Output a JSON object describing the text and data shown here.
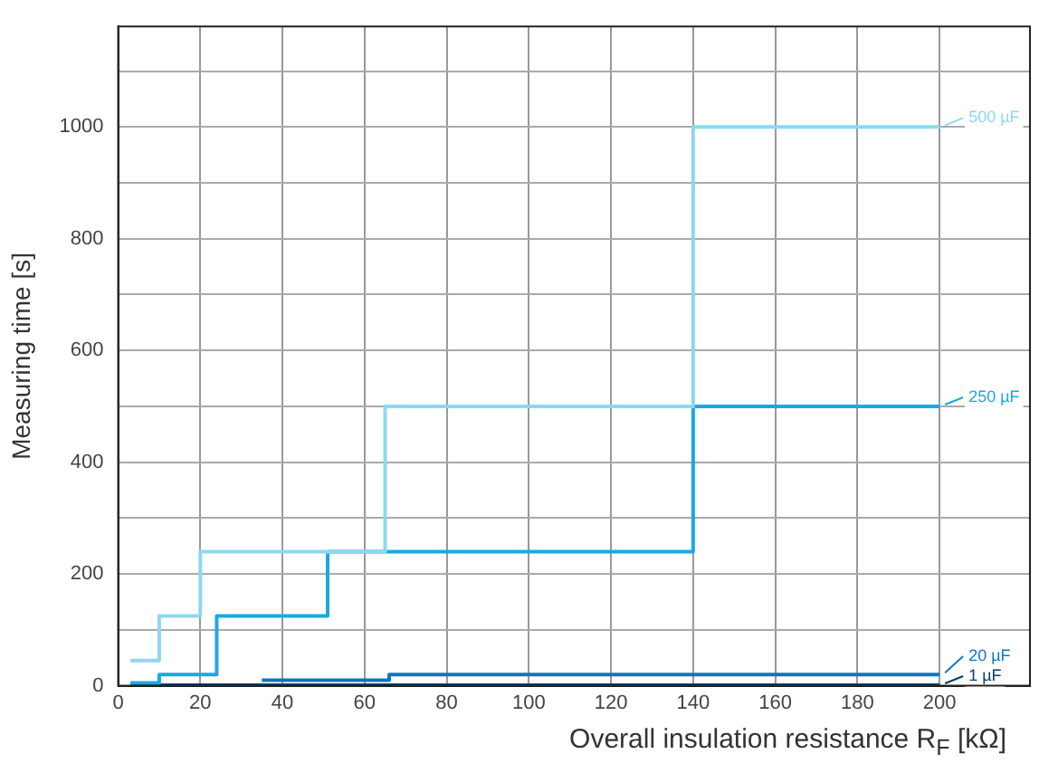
{
  "chart_data": {
    "type": "step",
    "xlabel": "Overall insulation resistance R$_{F}$ [kΩ]",
    "ylabel": "Measuring time [s]",
    "xlim": [
      0,
      222
    ],
    "xticks": [
      0,
      20,
      40,
      60,
      80,
      100,
      120,
      140,
      160,
      180,
      200
    ],
    "ylim": [
      0,
      1180
    ],
    "yticks": [
      0,
      {
        "value": 100,
        "label": null
      },
      200,
      {
        "value": 300,
        "label": null
      },
      400,
      {
        "value": 500,
        "label": null
      },
      600,
      {
        "value": 700,
        "label": null
      },
      800,
      {
        "value": 900,
        "label": null
      },
      1000,
      {
        "value": 1100,
        "label": null
      }
    ],
    "grid": true,
    "legend": "right",
    "line_style": "solid",
    "marker": "none",
    "series": [
      {
        "name": "500 µF",
        "color": "#8dd8f0",
        "x": [
          3,
          10,
          20,
          65,
          140,
          200
        ],
        "values": [
          45,
          125,
          240,
          500,
          1000,
          1000
        ]
      },
      {
        "name": "250 µF",
        "color": "#19a9e1",
        "x": [
          3,
          10,
          24,
          51,
          140,
          200
        ],
        "values": [
          5,
          20,
          125,
          240,
          500,
          500
        ]
      },
      {
        "name": "20 µF",
        "color": "#0b78c0",
        "x": [
          35,
          66,
          200
        ],
        "values": [
          10,
          20,
          20
        ]
      },
      {
        "name": "1 µF",
        "color": "#0a3d6b",
        "x": [
          3,
          200
        ],
        "values": [
          1,
          1
        ]
      }
    ]
  }
}
